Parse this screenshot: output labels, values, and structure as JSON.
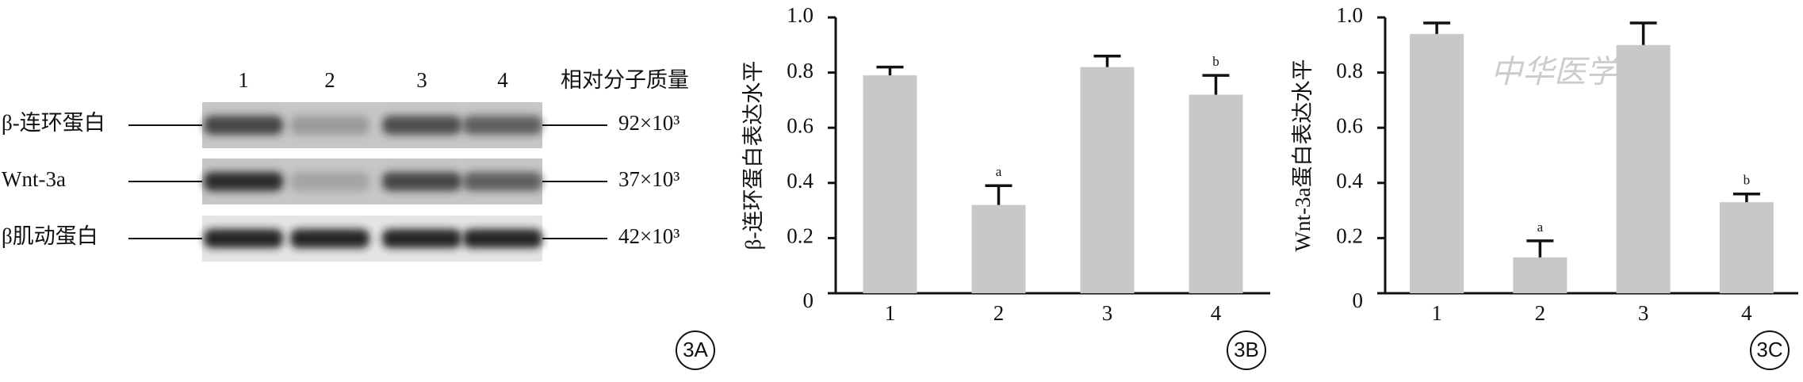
{
  "blot": {
    "lanes": [
      "1",
      "2",
      "3",
      "4"
    ],
    "header": "相对分子质量",
    "rows": [
      {
        "label": "β-连环蛋白",
        "mass": "92×10³"
      },
      {
        "label": "Wnt-3a",
        "mass": "37×10³"
      },
      {
        "label": "β肌动蛋白",
        "mass": "42×10³"
      }
    ],
    "panel": "3A"
  },
  "watermark": "中华医学会",
  "chart_data": [
    {
      "type": "bar",
      "panel": "3B",
      "y_label": "β-连环蛋白表达水平",
      "categories": [
        "1",
        "2",
        "3",
        "4"
      ],
      "values": [
        0.79,
        0.32,
        0.82,
        0.72
      ],
      "errors": [
        0.03,
        0.07,
        0.04,
        0.07
      ],
      "sig_labels": [
        null,
        "a",
        null,
        "b"
      ],
      "color": "#c8c8c8",
      "ylim": [
        0,
        1
      ],
      "yticks": [
        0,
        0.2,
        0.4,
        0.6,
        0.8,
        {
          "value": 1,
          "label": "1.0"
        }
      ]
    },
    {
      "type": "bar",
      "panel": "3C",
      "y_label": "Wnt-3a蛋白表达水平",
      "categories": [
        "1",
        "2",
        "3",
        "4"
      ],
      "values": [
        0.94,
        0.13,
        0.9,
        0.33
      ],
      "errors": [
        0.04,
        0.06,
        0.08,
        0.03
      ],
      "sig_labels": [
        null,
        "a",
        null,
        "b"
      ],
      "color": "#c8c8c8",
      "ylim": [
        0,
        1
      ],
      "yticks": [
        0,
        0.2,
        0.4,
        0.6,
        0.8,
        {
          "value": 1,
          "label": "1.0"
        }
      ]
    }
  ]
}
